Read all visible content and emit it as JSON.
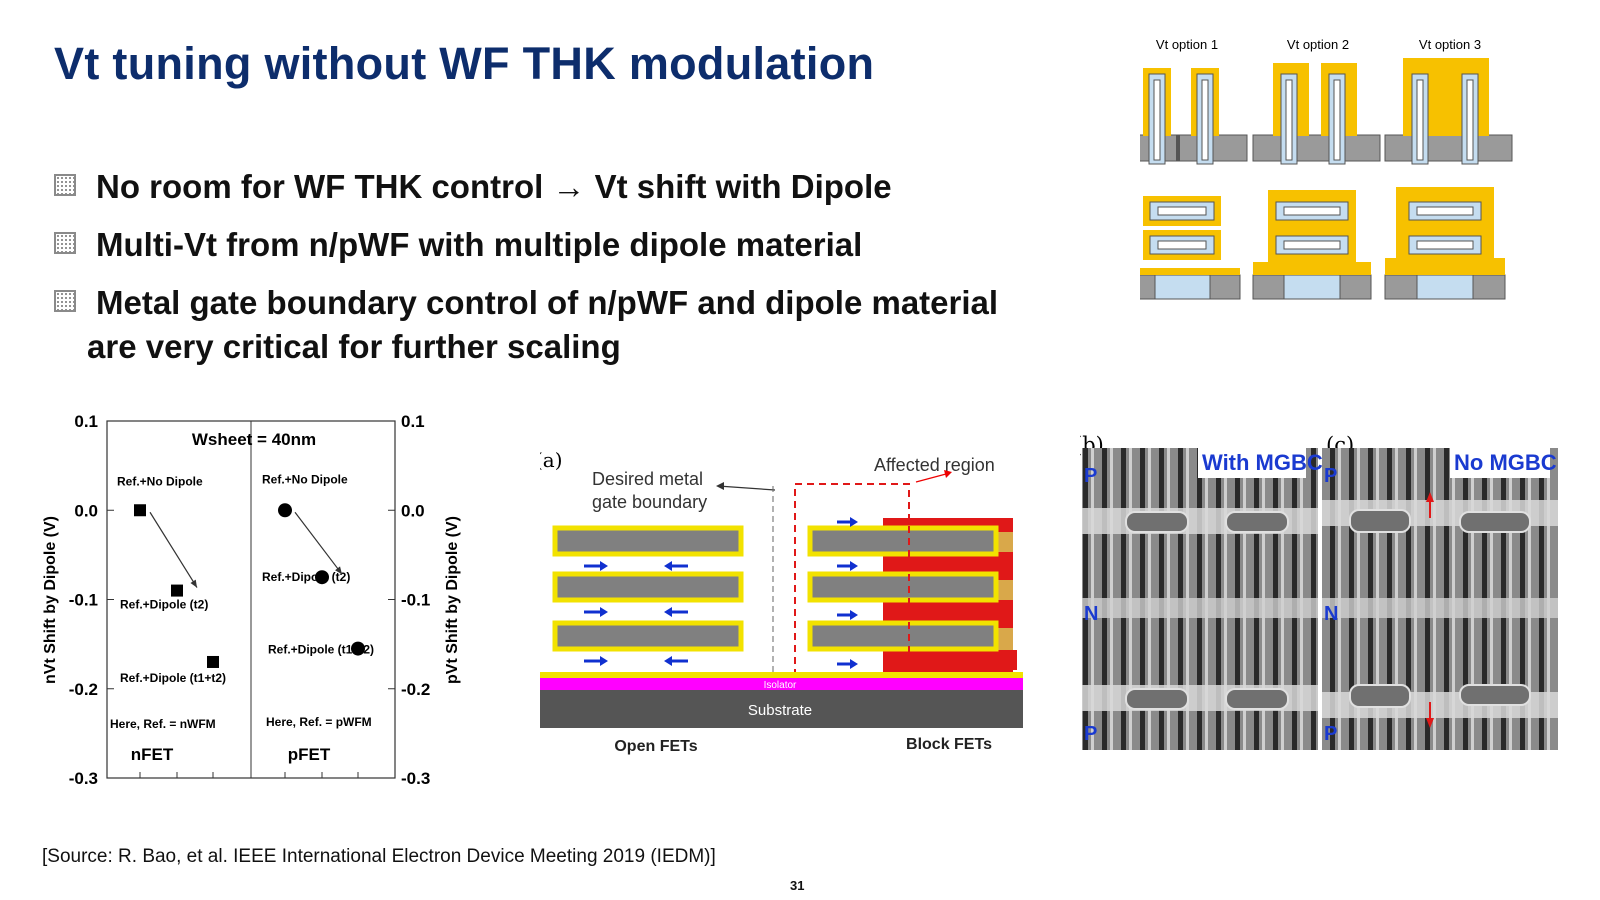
{
  "slide": {
    "title": "Vt tuning without WF THK modulation",
    "bullets": [
      "No room for WF THK control → Vt shift with Dipole",
      "Multi-Vt from n/pWF with multiple dipole material",
      "Metal gate boundary control of n/pWF and dipole material"
    ],
    "bullet3_cont": "are very critical for further scaling",
    "source": "[Source: R. Bao, et al. IEEE International Electron Device Meeting 2019 (IEDM)]",
    "page_number": "31"
  },
  "vt_options": {
    "labels": [
      "Vt option 1",
      "Vt option 2",
      "Vt option 3"
    ],
    "colors": {
      "metal": "#f7c100",
      "channel": "#c5ddf0",
      "substrate": "#9a9a9a"
    }
  },
  "chart_data": {
    "type": "scatter",
    "title": "Wsheet = 40nm",
    "ylabel_left": "nVt Shift by Dipole (V)",
    "ylabel_right": "pVt Shift by Dipole (V)",
    "ylim": [
      -0.3,
      0.1
    ],
    "y_ticks": [
      "0.1",
      "0.0",
      "-0.1",
      "-0.2",
      "-0.3"
    ],
    "panels": [
      {
        "name": "nFET",
        "marker": "square",
        "ref_note": "Here, Ref. = nWFM",
        "points": [
          {
            "label": "Ref.+No Dipole",
            "y": 0.0
          },
          {
            "label": "Ref.+Dipole (t2)",
            "y": -0.09
          },
          {
            "label": "Ref.+Dipole (t1+t2)",
            "y": -0.17
          }
        ]
      },
      {
        "name": "pFET",
        "marker": "circle",
        "ref_note": "Here, Ref. = pWFM",
        "points": [
          {
            "label": "Ref.+No Dipole",
            "y": 0.0
          },
          {
            "label": "Ref.+Dipole (t2)",
            "y": -0.075
          },
          {
            "label": "Ref.+Dipole (t1+t2)",
            "y": -0.155
          }
        ]
      }
    ]
  },
  "mgb_diagram": {
    "panel_label": "(a)",
    "desired": [
      "Desired metal",
      "gate boundary"
    ],
    "affected": "Affected region",
    "isolator": "Isolator",
    "substrate": "Substrate",
    "open_fets": "Open FETs",
    "block_fets": "Block FETs"
  },
  "tem": {
    "b_label": "(b)",
    "c_label": "(c)",
    "with_label": "With MGBC",
    "no_label": "No MGBC",
    "region_labels": [
      "P",
      "N",
      "P"
    ]
  }
}
